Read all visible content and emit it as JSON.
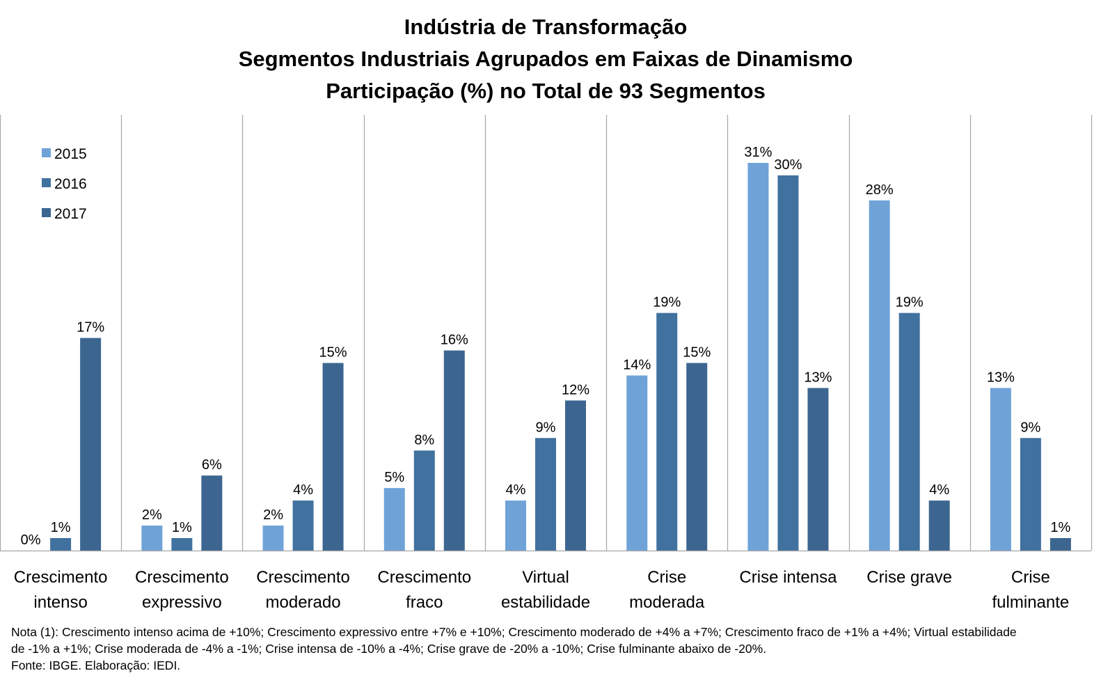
{
  "chart_data": {
    "type": "bar",
    "title_lines": [
      "Indústria de Transformação",
      "Segmentos Industriais Agrupados em Faixas de Dinamismo",
      "Participação (%) no Total de 93 Segmentos"
    ],
    "categories": [
      [
        "Crescimento",
        "intenso"
      ],
      [
        "Crescimento",
        "expressivo"
      ],
      [
        "Crescimento",
        "moderado"
      ],
      [
        "Crescimento",
        "fraco"
      ],
      [
        "Virtual",
        "estabilidade"
      ],
      [
        "Crise",
        "moderada"
      ],
      [
        "Crise intensa"
      ],
      [
        "Crise grave"
      ],
      [
        "Crise",
        "fulminante"
      ]
    ],
    "series": [
      {
        "name": "2015",
        "color": "#6fa3d8",
        "values": [
          0,
          2,
          2,
          5,
          4,
          14,
          31,
          28,
          13
        ]
      },
      {
        "name": "2016",
        "color": "#41719f",
        "values": [
          1,
          1,
          4,
          8,
          9,
          19,
          30,
          19,
          9
        ]
      },
      {
        "name": "2017",
        "color": "#3c6690",
        "values": [
          17,
          6,
          15,
          16,
          12,
          15,
          13,
          4,
          1
        ]
      }
    ],
    "value_suffix": "%",
    "ylim": [
      0,
      32.5
    ],
    "legend_position": "top-left",
    "grid": false
  },
  "notes": {
    "line1": "Nota (1): Crescimento intenso acima de +10%; Crescimento expressivo entre +7% e +10%; Crescimento moderado de +4% a +7%; Crescimento fraco de +1% a +4%; Virtual estabilidade",
    "line2": "de -1% a +1%; Crise moderada de -4% a -1%; Crise intensa de -10% a -4%; Crise grave de -20% a -10%; Crise fulminante abaixo de -20%.",
    "source": "Fonte: IBGE. Elaboração: IEDI."
  }
}
